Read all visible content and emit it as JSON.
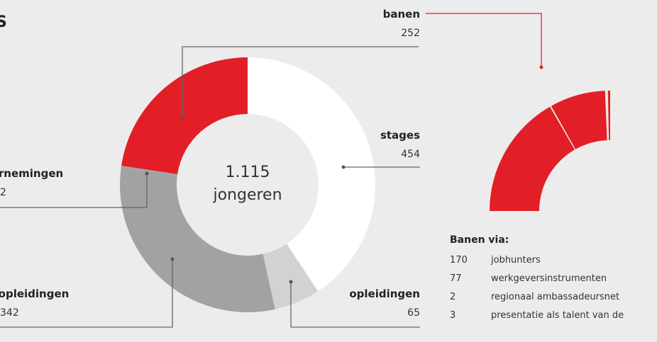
{
  "chart_data": [
    {
      "type": "pie",
      "center_label": [
        "1.115",
        "jongeren"
      ],
      "slices": [
        {
          "name": "stages",
          "value": 454,
          "color": "#ffffff"
        },
        {
          "name": "opleidingen",
          "value": 65,
          "color": "#d2d2d2"
        },
        {
          "name": "BBL opleidingen",
          "value": 342,
          "color": "#a2a2a2"
        },
        {
          "name": "ondernemingen",
          "value": 2,
          "color": "#a2a2a2"
        },
        {
          "name": "banen",
          "value": 252,
          "color": "#e21f26"
        }
      ],
      "labels": {
        "banen": {
          "name": "banen",
          "value": "252"
        },
        "stages": {
          "name": "stages",
          "value": "454"
        },
        "opleidingen": {
          "name": "opleidingen",
          "value": "65"
        },
        "bbl": {
          "name": "BBL opleidingen",
          "value": "342"
        },
        "ondernemingen": {
          "name": "ondernemingen",
          "value": "2"
        }
      }
    },
    {
      "type": "pie",
      "title": "Banen via:",
      "slices": [
        {
          "name": "jobhunters",
          "value": 170,
          "color": "#e21f26"
        },
        {
          "name": "werkgeversinstrumenten",
          "value": 77,
          "color": "#e21f26"
        },
        {
          "name": "regionaal ambassadeursnet",
          "value": 2,
          "color": "#e21f26"
        },
        {
          "name": "presentatie als talent van de",
          "value": 3,
          "color": "#e21f26"
        }
      ],
      "legend": [
        {
          "value": "170",
          "label": "jobhunters"
        },
        {
          "value": "77",
          "label": "werkgeversinstrumenten"
        },
        {
          "value": "2",
          "label": "regionaal ambassadeursnet"
        },
        {
          "value": "3",
          "label": "presentatie als talent van de"
        }
      ]
    }
  ],
  "colors": {
    "accent": "#e21f26",
    "line": "#666666",
    "background": "#ececec"
  }
}
